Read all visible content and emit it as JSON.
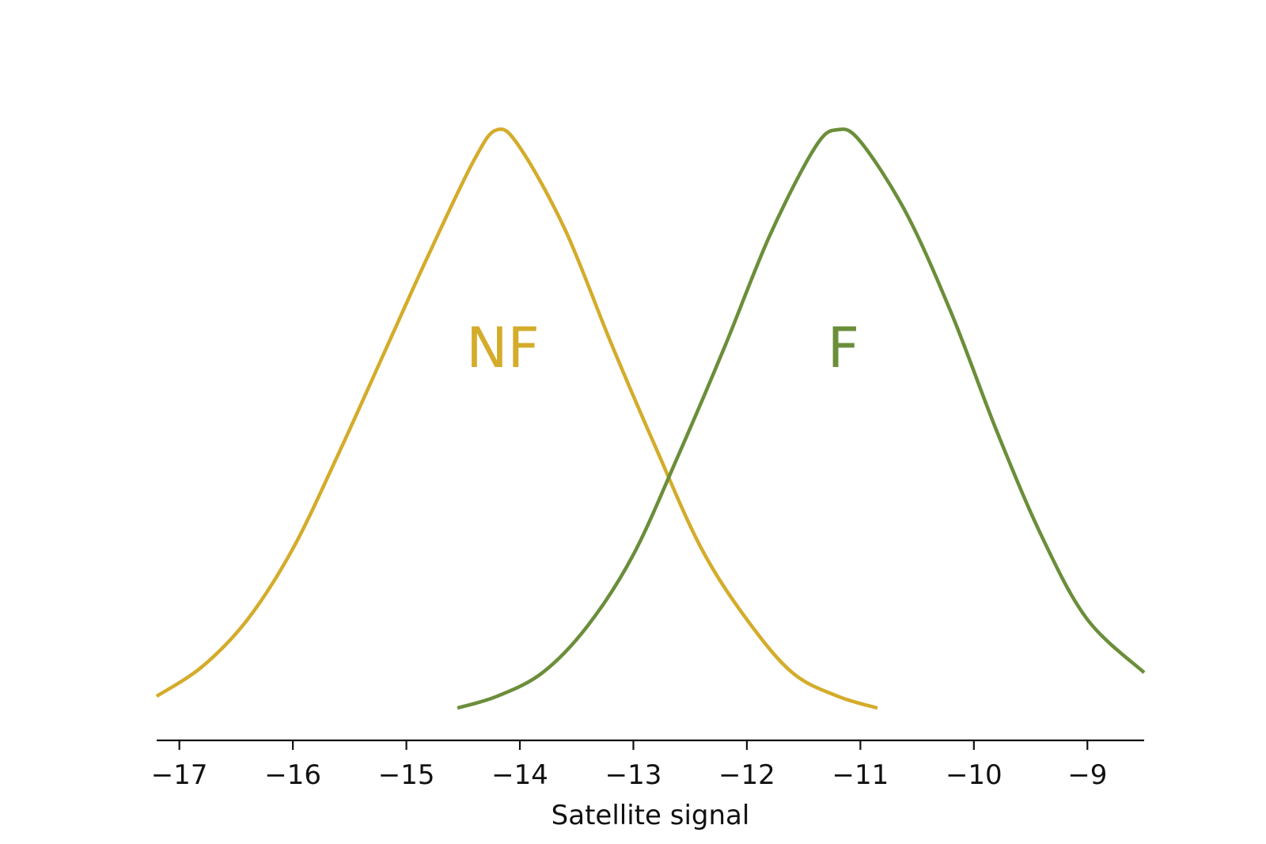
{
  "chart_data": {
    "type": "line",
    "title": "",
    "xlabel": "Satellite signal",
    "ylabel": "",
    "xlim": [
      -17.2,
      -8.5
    ],
    "ylim": [
      0,
      1
    ],
    "grid": false,
    "legend": "none",
    "x_ticks": [
      -17,
      -16,
      -15,
      -14,
      -13,
      -12,
      -11,
      -10,
      -9
    ],
    "x_tick_labels": [
      "−17",
      "−16",
      "−15",
      "−14",
      "−13",
      "−12",
      "−11",
      "−10",
      "−9"
    ],
    "series": [
      {
        "name": "NF",
        "color": "#d4ac2b",
        "label_x": -14.15,
        "x": [
          -17.2,
          -16.8,
          -16.4,
          -16.0,
          -15.6,
          -15.2,
          -14.8,
          -14.4,
          -14.2,
          -14.0,
          -13.6,
          -13.2,
          -12.8,
          -12.4,
          -12.0,
          -11.6,
          -11.2,
          -10.85
        ],
        "y": [
          0.04,
          0.09,
          0.17,
          0.29,
          0.45,
          0.62,
          0.79,
          0.95,
          1.0,
          0.97,
          0.83,
          0.64,
          0.46,
          0.29,
          0.17,
          0.08,
          0.04,
          0.02
        ]
      },
      {
        "name": "F",
        "color": "#6b8e3a",
        "label_x": -11.15,
        "x": [
          -14.55,
          -14.2,
          -13.8,
          -13.4,
          -13.0,
          -12.6,
          -12.2,
          -11.8,
          -11.4,
          -11.2,
          -11.0,
          -10.6,
          -10.2,
          -9.8,
          -9.4,
          -9.0,
          -8.5
        ],
        "y": [
          0.02,
          0.04,
          0.08,
          0.16,
          0.28,
          0.45,
          0.63,
          0.82,
          0.97,
          1.0,
          0.98,
          0.86,
          0.69,
          0.49,
          0.31,
          0.17,
          0.08
        ]
      }
    ]
  }
}
